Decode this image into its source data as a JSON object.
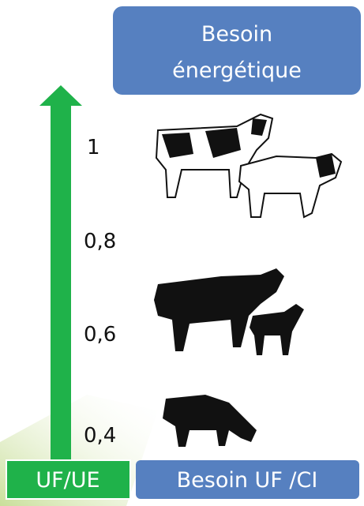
{
  "header": {
    "title_lines": [
      "Besoin",
      "énergétique"
    ]
  },
  "scale": {
    "labels": [
      "1",
      "0,8",
      "0,6",
      "0,4"
    ]
  },
  "footer": {
    "left": "UF/UE",
    "right": "Besoin UF /CI"
  }
}
